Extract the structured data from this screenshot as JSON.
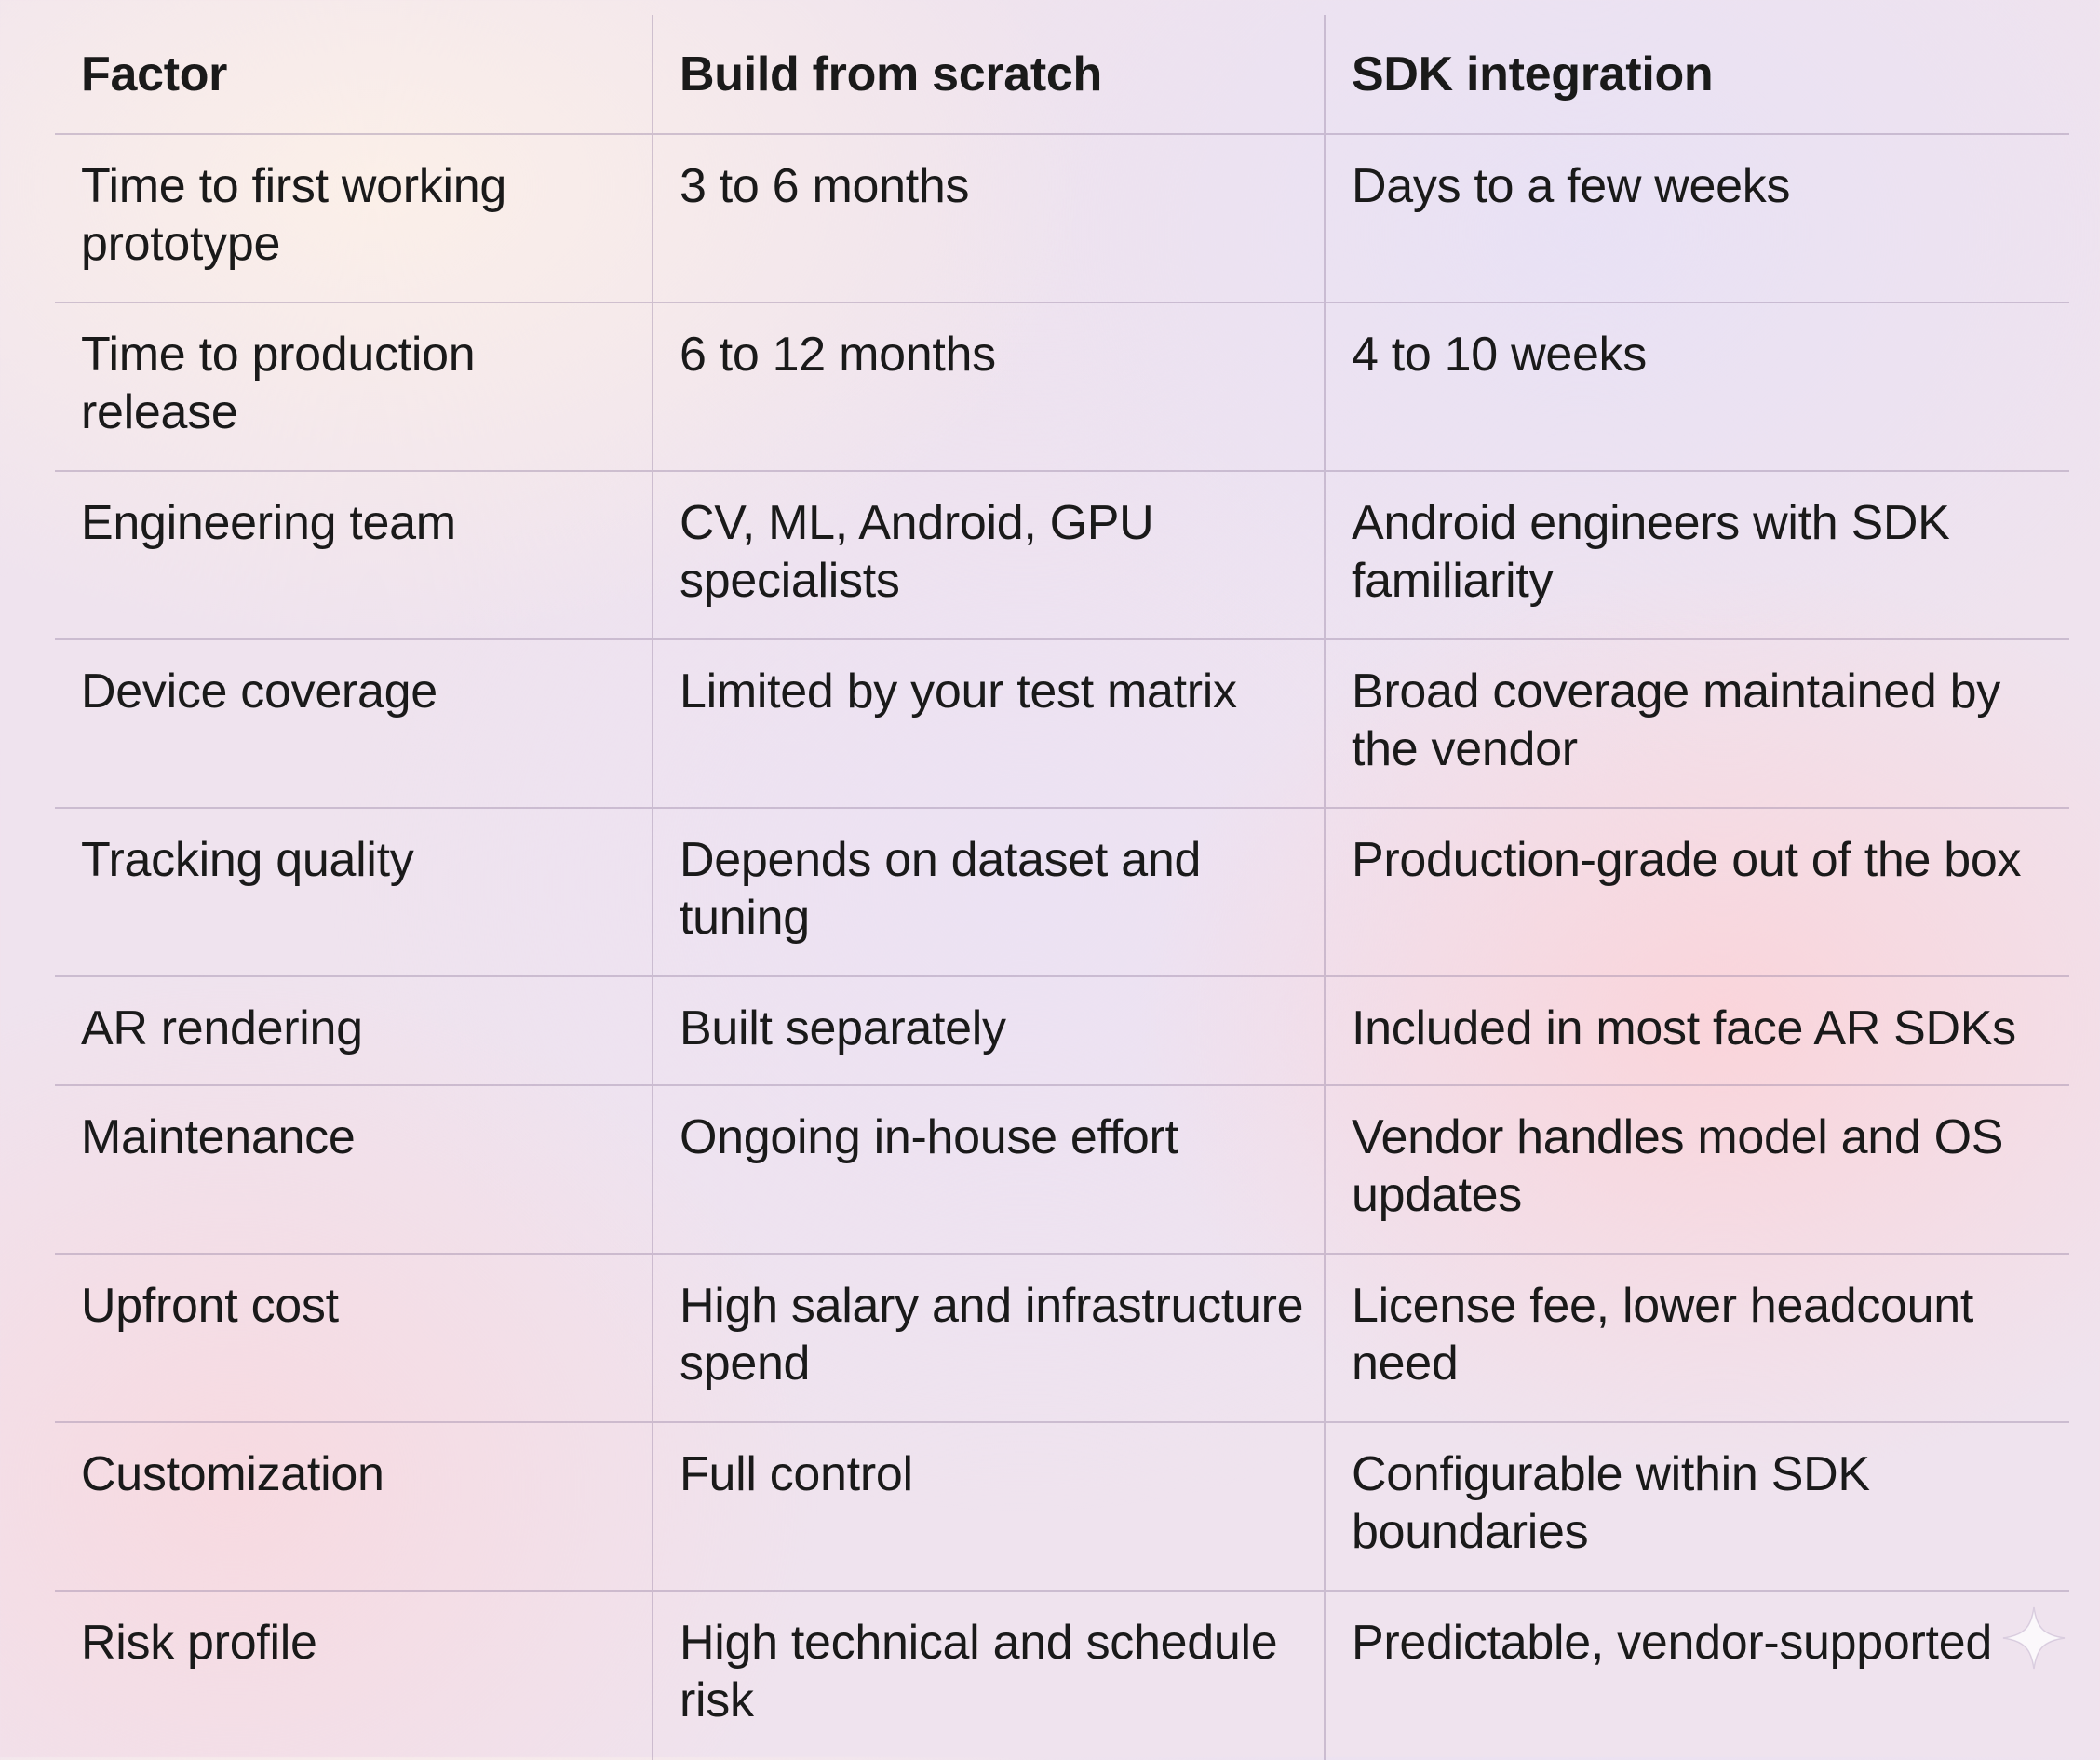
{
  "table": {
    "headers": [
      "Factor",
      "Build from scratch",
      "SDK integration"
    ],
    "rows": [
      [
        "Time to first working prototype",
        "3 to 6 months",
        "Days to a few weeks"
      ],
      [
        "Time to production release",
        "6 to 12 months",
        "4 to 10 weeks"
      ],
      [
        "Engineering team",
        "CV, ML, Android, GPU specialists",
        "Android engineers with SDK familiarity"
      ],
      [
        "Device coverage",
        "Limited by your test matrix",
        "Broad coverage maintained by the vendor"
      ],
      [
        "Tracking quality",
        "Depends on dataset and tuning",
        "Production-grade out of the box"
      ],
      [
        "AR rendering",
        "Built separately",
        "Included in most face AR SDKs"
      ],
      [
        "Maintenance",
        "Ongoing in-house effort",
        "Vendor handles model and OS updates"
      ],
      [
        "Upfront cost",
        "High salary and infrastructure spend",
        "License fee, lower headcount need"
      ],
      [
        "Customization",
        "Full control",
        "Configurable within SDK boundaries"
      ],
      [
        "Risk profile",
        "High technical and schedule risk",
        "Predictable, vendor-supported"
      ]
    ]
  },
  "icons": {
    "corner": "sparkle-icon"
  }
}
